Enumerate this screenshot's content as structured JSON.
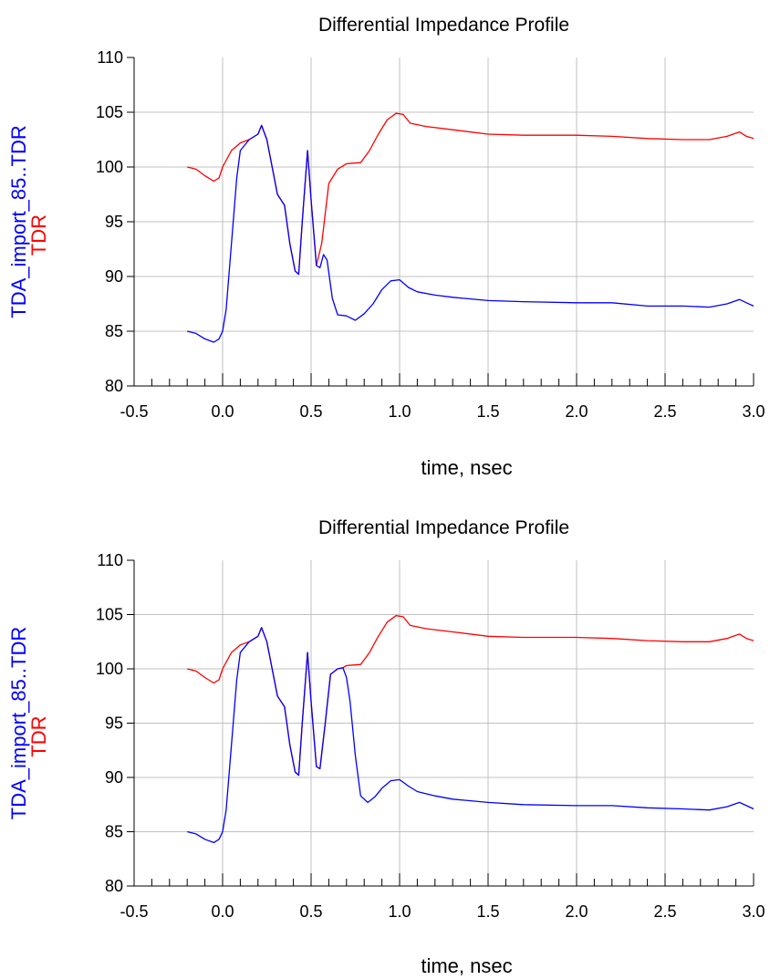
{
  "chart_data": [
    {
      "type": "line",
      "title": "Differential Impedance Profile",
      "xlabel": "time, nsec",
      "ylabel": [
        "TDA_import_85..TDR",
        "TDR"
      ],
      "xlim": [
        -0.5,
        3.0
      ],
      "ylim": [
        80,
        110
      ],
      "grid": true,
      "x_ticks": [
        "-0.5",
        "0.0",
        "0.5",
        "1.0",
        "1.5",
        "2.0",
        "2.5",
        "3.0"
      ],
      "y_ticks": [
        "80",
        "85",
        "90",
        "95",
        "100",
        "105",
        "110"
      ],
      "series": [
        {
          "name": "TDA_import_85..TDR",
          "color": "#0000ff",
          "points": [
            [
              -0.2,
              85
            ],
            [
              -0.15,
              84.8
            ],
            [
              -0.1,
              84.3
            ],
            [
              -0.05,
              84
            ],
            [
              -0.02,
              84.3
            ],
            [
              0.0,
              85
            ],
            [
              0.02,
              87
            ],
            [
              0.05,
              93
            ],
            [
              0.08,
              99
            ],
            [
              0.1,
              101.5
            ],
            [
              0.15,
              102.5
            ],
            [
              0.2,
              103
            ],
            [
              0.22,
              103.8
            ],
            [
              0.25,
              102.5
            ],
            [
              0.28,
              100
            ],
            [
              0.31,
              97.5
            ],
            [
              0.35,
              96.5
            ],
            [
              0.38,
              93
            ],
            [
              0.41,
              90.5
            ],
            [
              0.43,
              90.2
            ],
            [
              0.45,
              95
            ],
            [
              0.48,
              101.5
            ],
            [
              0.5,
              97
            ],
            [
              0.53,
              91
            ],
            [
              0.55,
              90.8
            ],
            [
              0.57,
              92
            ],
            [
              0.59,
              91.5
            ],
            [
              0.62,
              88
            ],
            [
              0.65,
              86.5
            ],
            [
              0.7,
              86.4
            ],
            [
              0.75,
              86
            ],
            [
              0.8,
              86.6
            ],
            [
              0.85,
              87.5
            ],
            [
              0.9,
              88.8
            ],
            [
              0.95,
              89.6
            ],
            [
              1.0,
              89.7
            ],
            [
              1.05,
              89
            ],
            [
              1.1,
              88.6
            ],
            [
              1.2,
              88.3
            ],
            [
              1.3,
              88.1
            ],
            [
              1.5,
              87.8
            ],
            [
              1.7,
              87.7
            ],
            [
              2.0,
              87.6
            ],
            [
              2.2,
              87.6
            ],
            [
              2.4,
              87.3
            ],
            [
              2.6,
              87.3
            ],
            [
              2.75,
              87.2
            ],
            [
              2.85,
              87.5
            ],
            [
              2.92,
              87.9
            ],
            [
              2.96,
              87.6
            ],
            [
              3.0,
              87.3
            ]
          ]
        },
        {
          "name": "TDR",
          "color": "#ff0000",
          "points": [
            [
              -0.2,
              100
            ],
            [
              -0.15,
              99.8
            ],
            [
              -0.1,
              99.2
            ],
            [
              -0.05,
              98.7
            ],
            [
              -0.02,
              99
            ],
            [
              0.0,
              100
            ],
            [
              0.05,
              101.5
            ],
            [
              0.1,
              102.2
            ],
            [
              0.15,
              102.5
            ],
            [
              0.2,
              103
            ],
            [
              0.22,
              103.8
            ],
            [
              0.25,
              102.5
            ],
            [
              0.28,
              100
            ],
            [
              0.31,
              97.5
            ],
            [
              0.35,
              96.5
            ],
            [
              0.38,
              93
            ],
            [
              0.41,
              90.5
            ],
            [
              0.43,
              90.2
            ],
            [
              0.45,
              95
            ],
            [
              0.48,
              101.5
            ],
            [
              0.5,
              97
            ],
            [
              0.53,
              91
            ],
            [
              0.56,
              93
            ],
            [
              0.6,
              98.5
            ],
            [
              0.65,
              99.8
            ],
            [
              0.7,
              100.3
            ],
            [
              0.78,
              100.4
            ],
            [
              0.83,
              101.5
            ],
            [
              0.88,
              103
            ],
            [
              0.93,
              104.3
            ],
            [
              0.98,
              104.9
            ],
            [
              1.02,
              104.8
            ],
            [
              1.06,
              104
            ],
            [
              1.15,
              103.7
            ],
            [
              1.3,
              103.4
            ],
            [
              1.5,
              103
            ],
            [
              1.7,
              102.9
            ],
            [
              2.0,
              102.9
            ],
            [
              2.2,
              102.8
            ],
            [
              2.4,
              102.6
            ],
            [
              2.6,
              102.5
            ],
            [
              2.75,
              102.5
            ],
            [
              2.85,
              102.8
            ],
            [
              2.92,
              103.2
            ],
            [
              2.96,
              102.8
            ],
            [
              3.0,
              102.6
            ]
          ]
        }
      ]
    },
    {
      "type": "line",
      "title": "Differential Impedance Profile",
      "xlabel": "time, nsec",
      "ylabel": [
        "TDA_import_85..TDR",
        "TDR"
      ],
      "xlim": [
        -0.5,
        3.0
      ],
      "ylim": [
        80,
        110
      ],
      "grid": true,
      "x_ticks": [
        "-0.5",
        "0.0",
        "0.5",
        "1.0",
        "1.5",
        "2.0",
        "2.5",
        "3.0"
      ],
      "y_ticks": [
        "80",
        "85",
        "90",
        "95",
        "100",
        "105",
        "110"
      ],
      "series": [
        {
          "name": "TDA_import_85..TDR",
          "color": "#0000ff",
          "points": [
            [
              -0.2,
              85
            ],
            [
              -0.15,
              84.8
            ],
            [
              -0.1,
              84.3
            ],
            [
              -0.05,
              84
            ],
            [
              -0.02,
              84.3
            ],
            [
              0.0,
              85
            ],
            [
              0.02,
              87
            ],
            [
              0.05,
              93
            ],
            [
              0.08,
              99
            ],
            [
              0.1,
              101.5
            ],
            [
              0.15,
              102.5
            ],
            [
              0.2,
              103
            ],
            [
              0.22,
              103.8
            ],
            [
              0.25,
              102.5
            ],
            [
              0.28,
              100
            ],
            [
              0.31,
              97.5
            ],
            [
              0.35,
              96.5
            ],
            [
              0.38,
              93
            ],
            [
              0.41,
              90.5
            ],
            [
              0.43,
              90.2
            ],
            [
              0.45,
              95
            ],
            [
              0.48,
              101.5
            ],
            [
              0.5,
              97
            ],
            [
              0.53,
              91
            ],
            [
              0.55,
              90.8
            ],
            [
              0.58,
              95
            ],
            [
              0.61,
              99.5
            ],
            [
              0.65,
              100
            ],
            [
              0.68,
              100.1
            ],
            [
              0.7,
              99.2
            ],
            [
              0.72,
              97
            ],
            [
              0.75,
              92
            ],
            [
              0.78,
              88.3
            ],
            [
              0.82,
              87.7
            ],
            [
              0.86,
              88.2
            ],
            [
              0.9,
              89
            ],
            [
              0.95,
              89.7
            ],
            [
              1.0,
              89.8
            ],
            [
              1.05,
              89.2
            ],
            [
              1.1,
              88.7
            ],
            [
              1.2,
              88.3
            ],
            [
              1.3,
              88
            ],
            [
              1.5,
              87.7
            ],
            [
              1.7,
              87.5
            ],
            [
              2.0,
              87.4
            ],
            [
              2.2,
              87.4
            ],
            [
              2.4,
              87.2
            ],
            [
              2.6,
              87.1
            ],
            [
              2.75,
              87
            ],
            [
              2.85,
              87.3
            ],
            [
              2.92,
              87.7
            ],
            [
              2.96,
              87.4
            ],
            [
              3.0,
              87.1
            ]
          ]
        },
        {
          "name": "TDR",
          "color": "#ff0000",
          "points": [
            [
              -0.2,
              100
            ],
            [
              -0.15,
              99.8
            ],
            [
              -0.1,
              99.2
            ],
            [
              -0.05,
              98.7
            ],
            [
              -0.02,
              99
            ],
            [
              0.0,
              100
            ],
            [
              0.05,
              101.5
            ],
            [
              0.1,
              102.2
            ],
            [
              0.15,
              102.5
            ],
            [
              0.2,
              103
            ],
            [
              0.22,
              103.8
            ],
            [
              0.25,
              102.5
            ],
            [
              0.28,
              100
            ],
            [
              0.31,
              97.5
            ],
            [
              0.35,
              96.5
            ],
            [
              0.38,
              93
            ],
            [
              0.41,
              90.5
            ],
            [
              0.43,
              90.2
            ],
            [
              0.45,
              95
            ],
            [
              0.48,
              101.5
            ],
            [
              0.5,
              97
            ],
            [
              0.53,
              91
            ],
            [
              0.55,
              90.8
            ],
            [
              0.58,
              95
            ],
            [
              0.61,
              99.5
            ],
            [
              0.65,
              100
            ],
            [
              0.68,
              100.1
            ],
            [
              0.7,
              100.3
            ],
            [
              0.78,
              100.4
            ],
            [
              0.83,
              101.5
            ],
            [
              0.88,
              103
            ],
            [
              0.93,
              104.3
            ],
            [
              0.98,
              104.9
            ],
            [
              1.02,
              104.8
            ],
            [
              1.06,
              104
            ],
            [
              1.15,
              103.7
            ],
            [
              1.3,
              103.4
            ],
            [
              1.5,
              103
            ],
            [
              1.7,
              102.9
            ],
            [
              2.0,
              102.9
            ],
            [
              2.2,
              102.8
            ],
            [
              2.4,
              102.6
            ],
            [
              2.6,
              102.5
            ],
            [
              2.75,
              102.5
            ],
            [
              2.85,
              102.8
            ],
            [
              2.92,
              103.2
            ],
            [
              2.96,
              102.8
            ],
            [
              3.0,
              102.6
            ]
          ]
        }
      ]
    }
  ]
}
